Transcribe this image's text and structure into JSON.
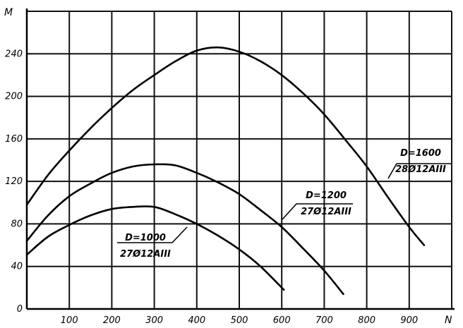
{
  "chart_data": {
    "type": "line",
    "xlabel": "N",
    "ylabel": "M",
    "xlim": [
      0,
      1000
    ],
    "ylim": [
      0,
      280
    ],
    "xticks": [
      100,
      200,
      300,
      400,
      500,
      600,
      700,
      800,
      900
    ],
    "yticks": [
      0,
      40,
      80,
      120,
      160,
      200,
      240
    ],
    "grid": true,
    "series": [
      {
        "name": "D=1600 / 28Ø12AIII",
        "label_top": "D=1600",
        "label_bottom": "28Ø12AIII",
        "x": [
          0,
          50,
          100,
          150,
          200,
          250,
          300,
          350,
          400,
          450,
          500,
          550,
          600,
          650,
          700,
          750,
          800,
          850,
          900,
          935
        ],
        "y": [
          98,
          126,
          149,
          170,
          189,
          206,
          220,
          233,
          243,
          246,
          242,
          233,
          220,
          203,
          183,
          159,
          134,
          105,
          77,
          60
        ]
      },
      {
        "name": "D=1200 / 27Ø12AIII",
        "label_top": "D=1200",
        "label_bottom": "27Ø12AIII",
        "x": [
          0,
          50,
          100,
          150,
          200,
          250,
          300,
          350,
          400,
          450,
          500,
          550,
          600,
          650,
          700,
          745
        ],
        "y": [
          64,
          88,
          106,
          118,
          128,
          134,
          136,
          135,
          128,
          119,
          108,
          93,
          77,
          57,
          36,
          14
        ]
      },
      {
        "name": "D=1000 / 27Ø12AIII",
        "label_top": "D=1000",
        "label_bottom": "27Ø12AIII",
        "x": [
          0,
          50,
          100,
          150,
          200,
          250,
          300,
          350,
          400,
          450,
          500,
          550,
          605
        ],
        "y": [
          51,
          68,
          79,
          88,
          94,
          96,
          96,
          89,
          80,
          69,
          56,
          40,
          18
        ]
      }
    ]
  }
}
